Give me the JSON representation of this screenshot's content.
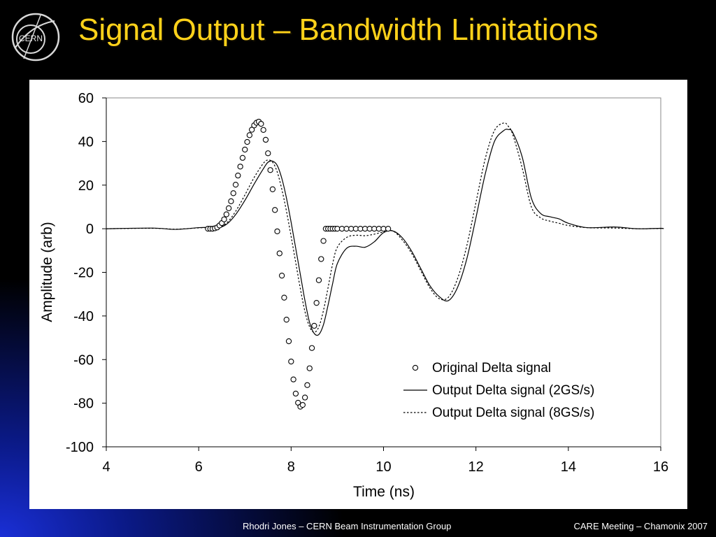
{
  "slide": {
    "title": "Signal Output – Bandwidth Limitations",
    "logo_text": "CERN",
    "footer_left": "Rhodri Jones – CERN Beam Instrumentation Group",
    "footer_right": "CARE Meeting – Chamonix 2007",
    "colors": {
      "background": "#000000",
      "title": "#ffd21a",
      "footer": "#ffffff",
      "accent_glow": "#1a2fd6"
    }
  },
  "chart_data": {
    "type": "line",
    "xlabel": "Time (ns)",
    "ylabel": "Amplitude (arb)",
    "xlim": [
      4,
      16
    ],
    "ylim": [
      -100,
      60
    ],
    "xticks": [
      4,
      6,
      8,
      10,
      12,
      14,
      16
    ],
    "yticks": [
      60,
      40,
      20,
      0,
      -20,
      -40,
      -60,
      -80,
      -100
    ],
    "grid": false,
    "legend_position": "lower-right",
    "series": [
      {
        "name": "Original Delta signal",
        "style": "markers",
        "marker": "open-circle",
        "x": [
          6.2,
          6.25,
          6.3,
          6.35,
          6.4,
          6.45,
          6.5,
          6.55,
          6.6,
          6.65,
          6.7,
          6.75,
          6.8,
          6.85,
          6.9,
          6.95,
          7.0,
          7.05,
          7.1,
          7.15,
          7.2,
          7.25,
          7.3,
          7.35,
          7.4,
          7.45,
          7.5,
          7.55,
          7.6,
          7.65,
          7.7,
          7.75,
          7.8,
          7.85,
          7.9,
          7.95,
          8.0,
          8.05,
          8.1,
          8.15,
          8.2,
          8.25,
          8.3,
          8.35,
          8.4,
          8.45,
          8.5,
          8.55,
          8.6,
          8.65,
          8.7,
          8.75,
          8.8,
          8.85,
          8.9,
          8.95,
          9.0,
          9.1,
          9.2,
          9.3,
          9.4,
          9.5,
          9.6,
          9.7,
          9.8,
          9.9,
          10.0,
          10.1
        ],
        "y": [
          0.0,
          0.0,
          0.0,
          0.2,
          0.6,
          1.5,
          2.6,
          4.3,
          6.6,
          9.4,
          12.6,
          16.3,
          20.2,
          24.4,
          28.5,
          32.5,
          36.3,
          39.8,
          42.9,
          45.4,
          47.4,
          48.6,
          49.1,
          48.1,
          45.3,
          40.8,
          34.6,
          26.9,
          18.1,
          8.6,
          -1.2,
          -11.3,
          -21.5,
          -31.6,
          -41.7,
          -51.6,
          -60.9,
          -69.1,
          -75.6,
          -79.8,
          -81.6,
          -80.8,
          -77.4,
          -71.7,
          -64.0,
          -54.7,
          -44.5,
          -34.0,
          -23.6,
          -13.9,
          -5.6,
          0.0,
          0.0,
          0.0,
          0.0,
          0.0,
          0.0,
          0.0,
          0.0,
          0.0,
          0.0,
          0.0,
          0.0,
          0.0,
          0.0,
          0.0,
          0.0,
          0.0
        ]
      },
      {
        "name": "Output Delta signal (2GS/s)",
        "style": "solid",
        "x": [
          4.0,
          5.0,
          5.5,
          6.0,
          6.2,
          6.4,
          6.6,
          6.8,
          7.0,
          7.2,
          7.4,
          7.5,
          7.6,
          7.7,
          7.8,
          7.9,
          8.0,
          8.1,
          8.2,
          8.3,
          8.4,
          8.5,
          8.6,
          8.7,
          8.8,
          8.9,
          9.0,
          9.2,
          9.4,
          9.6,
          9.8,
          10.0,
          10.2,
          10.4,
          10.6,
          10.8,
          11.0,
          11.2,
          11.4,
          11.6,
          11.8,
          12.0,
          12.2,
          12.4,
          12.6,
          12.7,
          12.8,
          13.0,
          13.2,
          13.4,
          13.6,
          13.8,
          14.0,
          14.4,
          15.0,
          15.5,
          16.0,
          16.05
        ],
        "y": [
          0,
          0.3,
          -0.3,
          0.5,
          0.6,
          0.3,
          2.0,
          6.5,
          13.0,
          20.5,
          27.5,
          30.5,
          31.0,
          29.0,
          23.0,
          14.0,
          3.0,
          -9.0,
          -21.0,
          -33.0,
          -43.0,
          -48.0,
          -48.5,
          -44.0,
          -35.0,
          -25.0,
          -16.0,
          -9.0,
          -8.0,
          -8.5,
          -6.0,
          -1.8,
          -1.0,
          -4.0,
          -10.0,
          -18.0,
          -26.0,
          -31.0,
          -33.0,
          -27.0,
          -14.0,
          5.0,
          25.0,
          40.0,
          45.0,
          45.5,
          44.0,
          33.0,
          14.0,
          7.0,
          5.5,
          4.5,
          2.5,
          0.5,
          0.8,
          0.0,
          0.2,
          0.0
        ]
      },
      {
        "name": "Output Delta signal (8GS/s)",
        "style": "dotted",
        "x": [
          4.0,
          5.0,
          5.5,
          6.0,
          6.2,
          6.4,
          6.6,
          6.8,
          7.0,
          7.2,
          7.4,
          7.5,
          7.6,
          7.7,
          7.8,
          7.9,
          8.0,
          8.1,
          8.2,
          8.3,
          8.4,
          8.5,
          8.6,
          8.7,
          8.8,
          8.9,
          9.0,
          9.2,
          9.4,
          9.6,
          9.8,
          10.0,
          10.2,
          10.4,
          10.6,
          10.8,
          11.0,
          11.2,
          11.4,
          11.6,
          11.8,
          12.0,
          12.2,
          12.4,
          12.6,
          12.7,
          12.8,
          13.0,
          13.2,
          13.4,
          13.6,
          13.8,
          14.0,
          14.4,
          15.0,
          15.5,
          16.0,
          16.05
        ],
        "y": [
          0,
          0.2,
          -0.2,
          0.4,
          0.5,
          0.4,
          2.5,
          8.0,
          15.5,
          23.5,
          30.0,
          31.5,
          30.5,
          26.0,
          18.0,
          8.0,
          -3.5,
          -15.5,
          -27.5,
          -38.0,
          -45.0,
          -47.5,
          -45.0,
          -37.5,
          -27.0,
          -16.0,
          -8.5,
          -4.0,
          -3.0,
          -3.2,
          -2.5,
          -1.5,
          -1.0,
          -5.0,
          -11.0,
          -19.0,
          -27.0,
          -32.0,
          -31.5,
          -23.0,
          -8.0,
          12.0,
          32.0,
          45.0,
          48.5,
          47.0,
          43.0,
          28.0,
          10.0,
          5.0,
          3.5,
          2.5,
          1.5,
          0.5,
          0.3,
          0.0,
          0.1,
          0.0
        ]
      }
    ]
  }
}
